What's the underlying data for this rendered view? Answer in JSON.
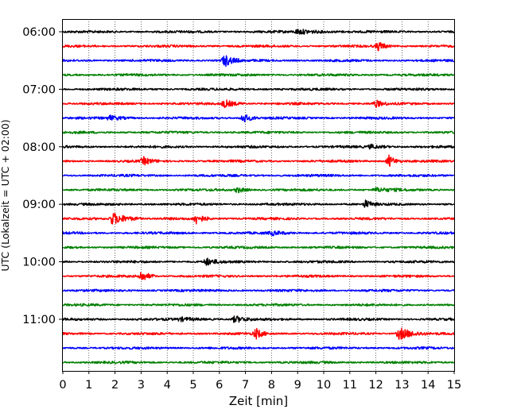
{
  "chart_data": {
    "type": "line",
    "title": "",
    "xlabel": "Zeit  [min]",
    "ylabel": "UTC (Lokalzeit = UTC + 02:00)",
    "xlim": [
      0,
      15
    ],
    "x_ticks": [
      "0",
      "1",
      "2",
      "3",
      "4",
      "5",
      "6",
      "7",
      "8",
      "9",
      "10",
      "11",
      "12",
      "13",
      "14",
      "15"
    ],
    "y_ticks": [
      "06:00",
      "07:00",
      "08:00",
      "09:00",
      "10:00",
      "11:00"
    ],
    "grid": "vertical dotted at each minute",
    "colors_cycle": [
      "#000000",
      "#ff0000",
      "#0000ff",
      "#008000"
    ],
    "traces": [
      {
        "start": "06:00",
        "color": "#000000",
        "events": [
          {
            "t": 9.0,
            "amp": 0.35,
            "dur": 1.8
          }
        ]
      },
      {
        "start": "06:15",
        "color": "#ff0000",
        "events": [
          {
            "t": 12.1,
            "amp": 0.7,
            "dur": 0.5
          }
        ]
      },
      {
        "start": "06:30",
        "color": "#0000ff",
        "events": [
          {
            "t": 6.2,
            "amp": 1.0,
            "dur": 0.6
          }
        ]
      },
      {
        "start": "06:45",
        "color": "#008000",
        "events": []
      },
      {
        "start": "07:00",
        "color": "#000000",
        "events": []
      },
      {
        "start": "07:15",
        "color": "#ff0000",
        "events": [
          {
            "t": 6.2,
            "amp": 0.6,
            "dur": 0.8
          },
          {
            "t": 12.0,
            "amp": 0.55,
            "dur": 0.5
          }
        ]
      },
      {
        "start": "07:30",
        "color": "#0000ff",
        "events": [
          {
            "t": 1.8,
            "amp": 0.35,
            "dur": 1.0
          },
          {
            "t": 6.9,
            "amp": 0.75,
            "dur": 0.6
          }
        ]
      },
      {
        "start": "07:45",
        "color": "#008000",
        "events": []
      },
      {
        "start": "08:00",
        "color": "#000000",
        "events": [
          {
            "t": 11.8,
            "amp": 0.3,
            "dur": 1.0
          }
        ]
      },
      {
        "start": "08:15",
        "color": "#ff0000",
        "events": [
          {
            "t": 3.1,
            "amp": 0.55,
            "dur": 0.6
          },
          {
            "t": 12.5,
            "amp": 0.95,
            "dur": 0.5
          }
        ]
      },
      {
        "start": "08:30",
        "color": "#0000ff",
        "events": []
      },
      {
        "start": "08:45",
        "color": "#008000",
        "events": [
          {
            "t": 6.7,
            "amp": 0.45,
            "dur": 0.6
          },
          {
            "t": 12.0,
            "amp": 0.3,
            "dur": 1.2
          }
        ]
      },
      {
        "start": "09:00",
        "color": "#000000",
        "events": [
          {
            "t": 11.6,
            "amp": 0.6,
            "dur": 0.5
          }
        ]
      },
      {
        "start": "09:15",
        "color": "#ff0000",
        "events": [
          {
            "t": 1.9,
            "amp": 1.0,
            "dur": 1.1
          },
          {
            "t": 5.1,
            "amp": 0.85,
            "dur": 0.6
          }
        ]
      },
      {
        "start": "09:30",
        "color": "#0000ff",
        "events": [
          {
            "t": 8.0,
            "amp": 0.3,
            "dur": 1.0
          }
        ]
      },
      {
        "start": "09:45",
        "color": "#008000",
        "events": []
      },
      {
        "start": "10:00",
        "color": "#000000",
        "events": [
          {
            "t": 5.5,
            "amp": 0.55,
            "dur": 0.7
          }
        ]
      },
      {
        "start": "10:15",
        "color": "#ff0000",
        "events": [
          {
            "t": 3.0,
            "amp": 0.85,
            "dur": 0.6
          }
        ]
      },
      {
        "start": "10:30",
        "color": "#0000ff",
        "events": []
      },
      {
        "start": "10:45",
        "color": "#008000",
        "events": []
      },
      {
        "start": "11:00",
        "color": "#000000",
        "events": [
          {
            "t": 6.6,
            "amp": 0.55,
            "dur": 0.7
          },
          {
            "t": 4.5,
            "amp": 0.25,
            "dur": 1.5
          }
        ]
      },
      {
        "start": "11:15",
        "color": "#ff0000",
        "events": [
          {
            "t": 7.4,
            "amp": 0.8,
            "dur": 0.5
          },
          {
            "t": 12.9,
            "amp": 1.0,
            "dur": 1.0
          }
        ]
      },
      {
        "start": "11:30",
        "color": "#0000ff",
        "events": []
      },
      {
        "start": "11:45",
        "color": "#008000",
        "events": []
      }
    ]
  }
}
